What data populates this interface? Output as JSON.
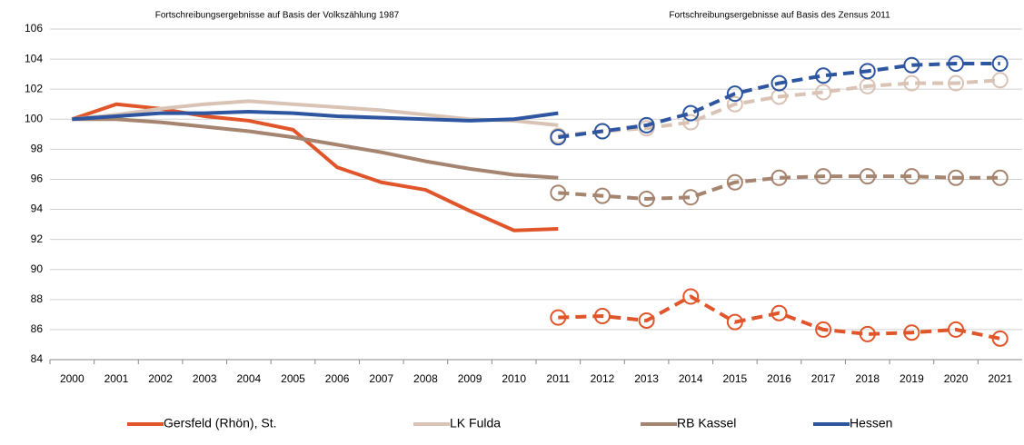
{
  "chart_data": {
    "type": "line",
    "annotations": [
      "Fortschreibungsergebnisse auf Basis der Volkszählung 1987",
      "Fortschreibungsergebnisse auf Basis des Zensus 2011"
    ],
    "categories": [
      "2000",
      "2001",
      "2002",
      "2003",
      "2004",
      "2005",
      "2006",
      "2007",
      "2008",
      "2009",
      "2010",
      "2011",
      "2012",
      "2013",
      "2014",
      "2015",
      "2016",
      "2017",
      "2018",
      "2019",
      "2020",
      "2021"
    ],
    "series": [
      {
        "name": "Gersfeld (Rhön), St.",
        "color": "#e0552a",
        "values": [
          100,
          101.0,
          100.7,
          100.2,
          99.9,
          99.3,
          96.8,
          95.8,
          95.3,
          93.9,
          92.6,
          92.7,
          null,
          null,
          null,
          null,
          null,
          null,
          null,
          null,
          null,
          null
        ],
        "zensus_values": [
          null,
          null,
          null,
          null,
          null,
          null,
          null,
          null,
          null,
          null,
          null,
          86.8,
          86.9,
          86.6,
          88.2,
          86.5,
          87.1,
          86.0,
          85.7,
          85.8,
          86.0,
          85.4
        ]
      },
      {
        "name": "LK Fulda",
        "color": "#d9c3b5",
        "values": [
          100,
          100.3,
          100.7,
          101.0,
          101.2,
          101.0,
          100.8,
          100.6,
          100.3,
          100.0,
          99.9,
          99.6,
          null,
          null,
          null,
          null,
          null,
          null,
          null,
          null,
          null,
          null
        ],
        "zensus_values": [
          null,
          null,
          null,
          null,
          null,
          null,
          null,
          null,
          null,
          null,
          null,
          98.9,
          99.2,
          99.4,
          99.8,
          101.0,
          101.5,
          101.8,
          102.2,
          102.4,
          102.4,
          102.6
        ]
      },
      {
        "name": "RB Kassel",
        "color": "#a58470",
        "values": [
          100,
          100.0,
          99.8,
          99.5,
          99.2,
          98.8,
          98.3,
          97.8,
          97.2,
          96.7,
          96.3,
          96.1,
          null,
          null,
          null,
          null,
          null,
          null,
          null,
          null,
          null,
          null
        ],
        "zensus_values": [
          null,
          null,
          null,
          null,
          null,
          null,
          null,
          null,
          null,
          null,
          null,
          95.1,
          94.9,
          94.7,
          94.8,
          95.8,
          96.1,
          96.2,
          96.2,
          96.2,
          96.1,
          96.1
        ]
      },
      {
        "name": "Hessen",
        "color": "#2e55a0",
        "values": [
          100,
          100.2,
          100.4,
          100.4,
          100.5,
          100.4,
          100.2,
          100.1,
          100.0,
          99.9,
          100.0,
          100.4,
          null,
          null,
          null,
          null,
          null,
          null,
          null,
          null,
          null,
          null
        ],
        "zensus_values": [
          null,
          null,
          null,
          null,
          null,
          null,
          null,
          null,
          null,
          null,
          null,
          98.8,
          99.2,
          99.6,
          100.4,
          101.7,
          102.4,
          102.9,
          103.2,
          103.6,
          103.7,
          103.7
        ]
      }
    ],
    "ylim": [
      84,
      106
    ],
    "yticks": [
      84,
      86,
      88,
      90,
      92,
      94,
      96,
      98,
      100,
      102,
      104,
      106
    ],
    "grid": true
  }
}
